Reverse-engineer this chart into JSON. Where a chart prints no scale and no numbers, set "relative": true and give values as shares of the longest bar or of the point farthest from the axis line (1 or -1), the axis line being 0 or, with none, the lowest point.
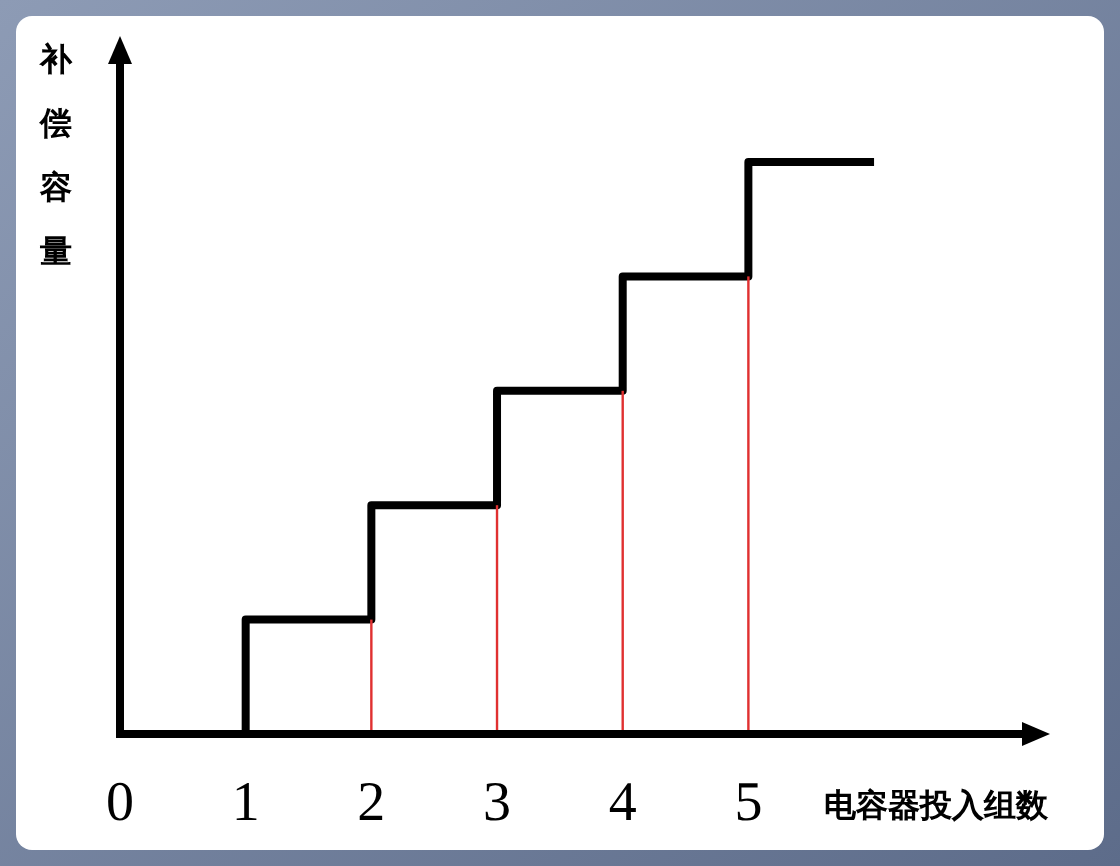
{
  "chart_data": {
    "type": "step",
    "relative": true,
    "xlabel": "电容器投入组数",
    "ylabel": "补偿容量",
    "xlim": [
      0,
      7.4
    ],
    "xticks": [
      0,
      1,
      2,
      3,
      4,
      5
    ],
    "series": [
      {
        "color": "#000000",
        "x": [
          1,
          1,
          2,
          3,
          4,
          5,
          6
        ],
        "values": [
          0,
          0.2,
          0.4,
          0.6,
          0.8,
          1,
          1
        ]
      },
      {
        "type": "bar",
        "color": "#e03030",
        "x": [
          2,
          3,
          4,
          5
        ],
        "values": [
          0.2,
          0.4,
          0.6,
          0.8
        ]
      }
    ]
  }
}
